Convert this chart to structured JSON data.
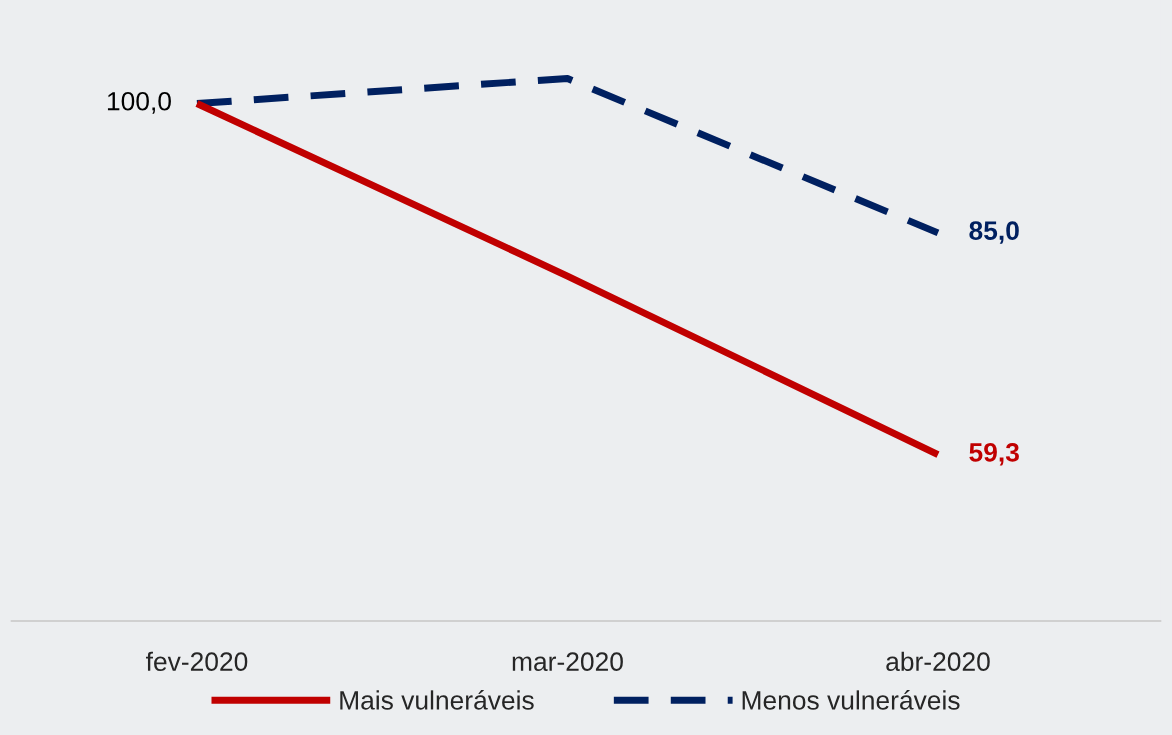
{
  "chart_data": {
    "type": "line",
    "categories": [
      "fev-2020",
      "mar-2020",
      "abr-2020"
    ],
    "series": [
      {
        "name": "Mais vulneráveis",
        "color": "#c00000",
        "values": [
          100.0,
          80.0,
          59.3
        ],
        "line_style": "solid",
        "value_labels": [
          "100,0",
          null,
          "59,3"
        ]
      },
      {
        "name": "Menos vulneráveis",
        "color": "#002060",
        "values": [
          100.0,
          102.9,
          85.0
        ],
        "line_style": "dashed",
        "value_labels": [
          null,
          null,
          "85,0"
        ]
      }
    ],
    "ylim": [
      40,
      112
    ],
    "tick_labels": "x",
    "grid": false,
    "legend": "bottom",
    "marker": "none"
  }
}
